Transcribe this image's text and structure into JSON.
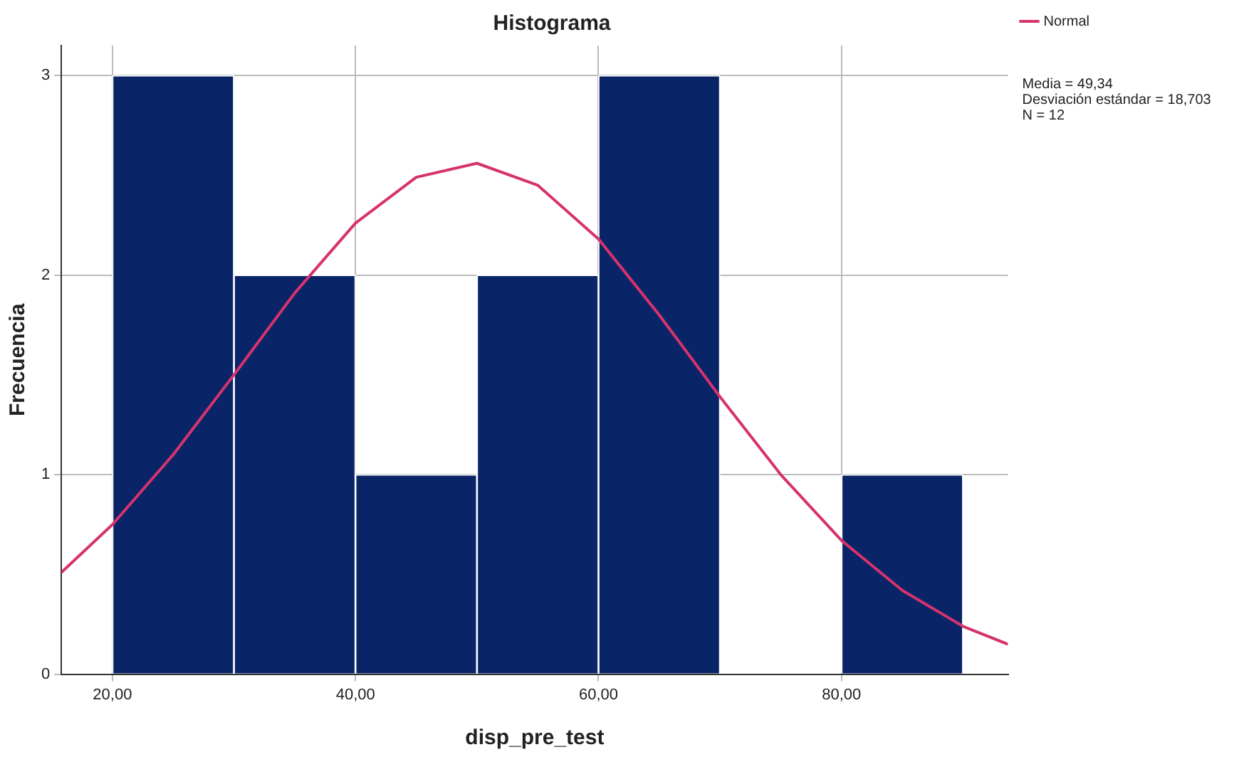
{
  "chart_data": {
    "type": "histogram",
    "title": "Histograma",
    "xlabel": "disp_pre_test",
    "ylabel": "Frecuencia",
    "bins": [
      20,
      30,
      40,
      50,
      60,
      70,
      80,
      90
    ],
    "values": [
      3,
      2,
      1,
      2,
      3,
      0,
      1
    ],
    "color": "#0a2468",
    "series": [
      {
        "type": "line",
        "name": "Normal",
        "color": "#d6336c",
        "x": [
          15.8,
          20,
          25,
          30,
          35,
          40,
          45,
          50,
          55,
          60,
          65,
          70,
          75,
          80,
          85,
          90,
          93.7
        ],
        "values": [
          0.51,
          0.75,
          1.1,
          1.5,
          1.91,
          2.26,
          2.49,
          2.56,
          2.45,
          2.18,
          1.8,
          1.39,
          1.0,
          0.67,
          0.42,
          0.24,
          0.15
        ]
      }
    ],
    "annotations": [
      "Media = 49,34",
      "Desviación estándar = 18,703",
      "N = 12"
    ],
    "xlim": [
      15.8,
      93.7
    ],
    "xticks": [
      {
        "value": 20,
        "label": "20,00"
      },
      {
        "value": 40,
        "label": "40,00"
      },
      {
        "value": 60,
        "label": "60,00"
      },
      {
        "value": 80,
        "label": "80,00"
      }
    ],
    "ylim": [
      0,
      3.15
    ],
    "yticks": [
      0,
      1,
      2,
      3
    ],
    "grid": true,
    "legend": "top right",
    "marker": "none",
    "line_style": "solid"
  }
}
